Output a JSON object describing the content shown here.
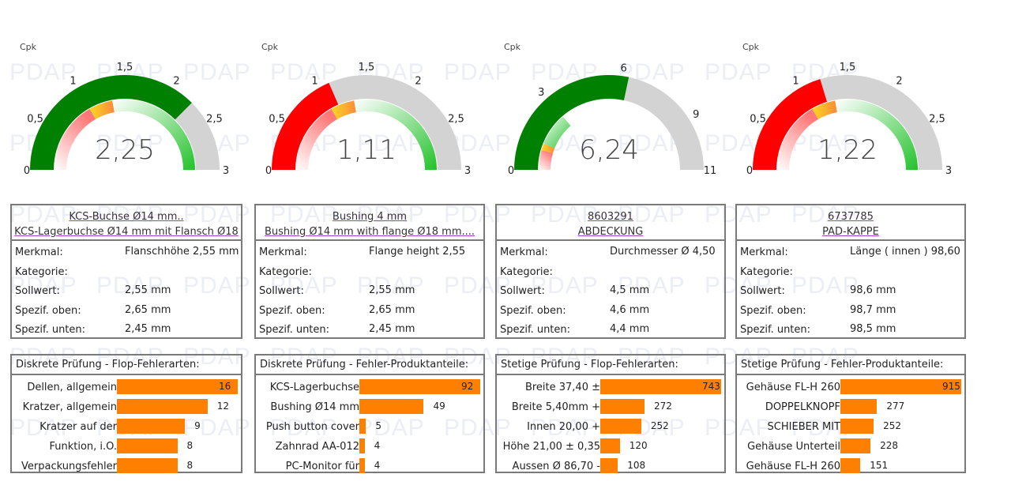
{
  "watermark": "PDAP",
  "colors": {
    "red": "#ff0000",
    "green": "#008000",
    "gray": "#d3d3d3",
    "orange_bar": "#ff8000",
    "yellow": "#ffd020"
  },
  "gauges": [
    {
      "label": "Cpk",
      "value": 2.25,
      "value_text": "2,25",
      "min": 0,
      "max": 3,
      "fill_color": "#008000",
      "ticks": [
        {
          "v": 0,
          "t": "0"
        },
        {
          "v": 0.5,
          "t": "0,5"
        },
        {
          "v": 1,
          "t": "1"
        },
        {
          "v": 1.5,
          "t": "1,5"
        },
        {
          "v": 2,
          "t": "2"
        },
        {
          "v": 2.5,
          "t": "2,5"
        },
        {
          "v": 3,
          "t": "3"
        }
      ]
    },
    {
      "label": "Cpk",
      "value": 1.11,
      "value_text": "1,11",
      "min": 0,
      "max": 3,
      "fill_color": "#ff0000",
      "ticks": [
        {
          "v": 0,
          "t": "0"
        },
        {
          "v": 0.5,
          "t": "0,5"
        },
        {
          "v": 1,
          "t": "1"
        },
        {
          "v": 1.5,
          "t": "1,5"
        },
        {
          "v": 2,
          "t": "2"
        },
        {
          "v": 2.5,
          "t": "2,5"
        },
        {
          "v": 3,
          "t": "3"
        }
      ]
    },
    {
      "label": "Cpk",
      "value": 6.24,
      "value_text": "6,24",
      "min": 0,
      "max": 11,
      "fill_color": "#008000",
      "ticks": [
        {
          "v": 0,
          "t": "0"
        },
        {
          "v": 3,
          "t": "3"
        },
        {
          "v": 6,
          "t": "6"
        },
        {
          "v": 9,
          "t": "9"
        },
        {
          "v": 11,
          "t": "11"
        }
      ]
    },
    {
      "label": "Cpk",
      "value": 1.22,
      "value_text": "1,22",
      "min": 0,
      "max": 3,
      "fill_color": "#ff0000",
      "ticks": [
        {
          "v": 0,
          "t": "0"
        },
        {
          "v": 0.5,
          "t": "0,5"
        },
        {
          "v": 1,
          "t": "1"
        },
        {
          "v": 1.5,
          "t": "1,5"
        },
        {
          "v": 2,
          "t": "2"
        },
        {
          "v": 2.5,
          "t": "2,5"
        },
        {
          "v": 3,
          "t": "3"
        }
      ]
    }
  ],
  "gauge_bands": [
    {
      "from": 0,
      "to": 1,
      "type": "red"
    },
    {
      "from": 1,
      "to": 1.33,
      "type": "yellow"
    },
    {
      "from": 1.33,
      "to": 3,
      "type": "green"
    }
  ],
  "info": [
    {
      "title1": "KCS-Buchse Ø14 mm..",
      "title2": "KCS-Lagerbuchse Ø14 mm mit Flansch Ø18",
      "rows": [
        {
          "label": "Merkmal:",
          "value": "Flanschhöhe 2,55 mm"
        },
        {
          "label": "Kategorie:",
          "value": ""
        },
        {
          "label": "Sollwert:",
          "value": "2,55 mm"
        },
        {
          "label": "Spezif. oben:",
          "value": "2,65 mm"
        },
        {
          "label": "Spezif. unten:",
          "value": "2,45 mm"
        }
      ]
    },
    {
      "title1": "Bushing 4 mm",
      "title2": "Bushing Ø14 mm with flange Ø18 mm....",
      "rows": [
        {
          "label": "Merkmal:",
          "value": "Flange height 2,55"
        },
        {
          "label": "Kategorie:",
          "value": ""
        },
        {
          "label": "Sollwert:",
          "value": "2,55 mm"
        },
        {
          "label": "Spezif. oben:",
          "value": "2,65 mm"
        },
        {
          "label": "Spezif. unten:",
          "value": "2,45 mm"
        }
      ]
    },
    {
      "title1": "8603291",
      "title2": "ABDECKUNG",
      "rows": [
        {
          "label": "Merkmal:",
          "value": "Durchmesser Ø 4,50"
        },
        {
          "label": "Kategorie:",
          "value": ""
        },
        {
          "label": "Sollwert:",
          "value": "4,5 mm"
        },
        {
          "label": "Spezif. oben:",
          "value": "4,6 mm"
        },
        {
          "label": "Spezif. unten:",
          "value": "4,4 mm"
        }
      ]
    },
    {
      "title1": "6737785",
      "title2": "PAD-KAPPE",
      "rows": [
        {
          "label": "Merkmal:",
          "value": "Länge ( innen ) 98,60"
        },
        {
          "label": "Kategorie:",
          "value": ""
        },
        {
          "label": "Sollwert:",
          "value": "98,6 mm"
        },
        {
          "label": "Spezif. oben:",
          "value": "98,7 mm"
        },
        {
          "label": "Spezif. unten:",
          "value": "98,5 mm"
        }
      ]
    }
  ],
  "chart_data": [
    {
      "type": "bar",
      "title": "Diskrete Prüfung - Flop-Fehlerarten:",
      "categories": [
        "Dellen, allgemein",
        "Kratzer, allgemein",
        "Kratzer auf der",
        "Funktion, i.O.",
        "Verpackungsfehler"
      ],
      "values": [
        16,
        12,
        9,
        8,
        8
      ]
    },
    {
      "type": "bar",
      "title": "Diskrete Prüfung - Fehler-Produktanteile:",
      "categories": [
        "KCS-Lagerbuchse",
        "Bushing Ø14 mm",
        "Push button cover",
        "Zahnrad AA-012",
        "PC-Monitor für"
      ],
      "values": [
        92,
        49,
        5,
        4,
        4
      ]
    },
    {
      "type": "bar",
      "title": "Stetige Prüfung - Flop-Fehlerarten:",
      "categories": [
        "Breite 37,40 ±",
        "Breite 5,40mm +",
        "Innen  20,00  +",
        "Höhe 21,00 ± 0,35",
        "Aussen Ø  86,70 -"
      ],
      "values": [
        743,
        272,
        252,
        120,
        108
      ]
    },
    {
      "type": "bar",
      "title": "Stetige Prüfung - Fehler-Produktanteile:",
      "categories": [
        "Gehäuse FL-H 260",
        "DOPPELKNOPF",
        "SCHIEBER MIT",
        "Gehäuse Unterteil",
        "Gehäuse FL-H 260"
      ],
      "values": [
        915,
        277,
        252,
        228,
        151
      ]
    }
  ]
}
